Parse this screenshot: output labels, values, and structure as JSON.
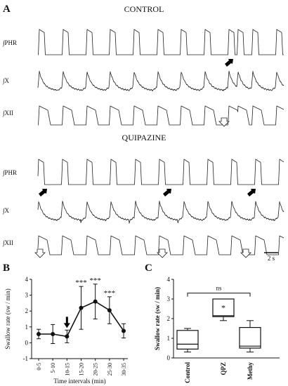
{
  "panels": {
    "a": {
      "letter": "A",
      "control": {
        "title": "CONTROL",
        "traces": [
          {
            "label": "∫PHR",
            "type": "phr",
            "peaks": 11
          },
          {
            "label": "∫X",
            "type": "x",
            "peaks": 11
          },
          {
            "label": "∫XII",
            "type": "xii",
            "peaks": 11
          }
        ],
        "swallow_markers": 1
      },
      "quipazine": {
        "title": "QUIPAZINE",
        "traces": [
          {
            "label": "∫PHR",
            "type": "phr",
            "peaks": 11
          },
          {
            "label": "∫X",
            "type": "x",
            "peaks": 11
          },
          {
            "label": "∫XII",
            "type": "xii",
            "peaks": 11
          }
        ],
        "swallow_markers": 3
      },
      "scale_bar": "2 s"
    },
    "b": {
      "letter": "B"
    },
    "c": {
      "letter": "C"
    }
  },
  "chart_data": [
    {
      "type": "line",
      "panel": "B",
      "xlabel": "Time intervals  (min)",
      "ylabel": "Swallow rate  (sw / min)",
      "ylim": [
        -1,
        4
      ],
      "yticks": [
        -1,
        0,
        1,
        2,
        3,
        4
      ],
      "categories": [
        "0-5",
        "5-10",
        "10-15",
        "15-20",
        "20-25",
        "25-30",
        "30-35"
      ],
      "values": [
        0.55,
        0.55,
        0.4,
        2.2,
        2.6,
        2.05,
        0.75
      ],
      "error": [
        0.3,
        0.6,
        0.4,
        1.35,
        1.1,
        0.85,
        0.45
      ],
      "significance": [
        "",
        "",
        "",
        "***",
        "***",
        "***",
        ""
      ],
      "arrow_at": "10-15"
    },
    {
      "type": "box",
      "panel": "C",
      "ylabel": "Swallow rate (sw / min)",
      "ylim": [
        0,
        4
      ],
      "yticks": [
        0,
        1,
        2,
        3,
        4
      ],
      "categories": [
        "Control",
        "QPZ",
        "Methy"
      ],
      "boxes": [
        {
          "min": 0.3,
          "q1": 0.45,
          "median": 0.7,
          "q3": 1.4,
          "max": 1.5
        },
        {
          "min": 1.9,
          "q1": 2.1,
          "median": 2.15,
          "q3": 3.0,
          "max": 3.0
        },
        {
          "min": 0.3,
          "q1": 0.5,
          "median": 0.6,
          "q3": 1.55,
          "max": 1.9
        }
      ],
      "annotations": {
        "bracket_label": "ns",
        "star": "*"
      }
    }
  ]
}
